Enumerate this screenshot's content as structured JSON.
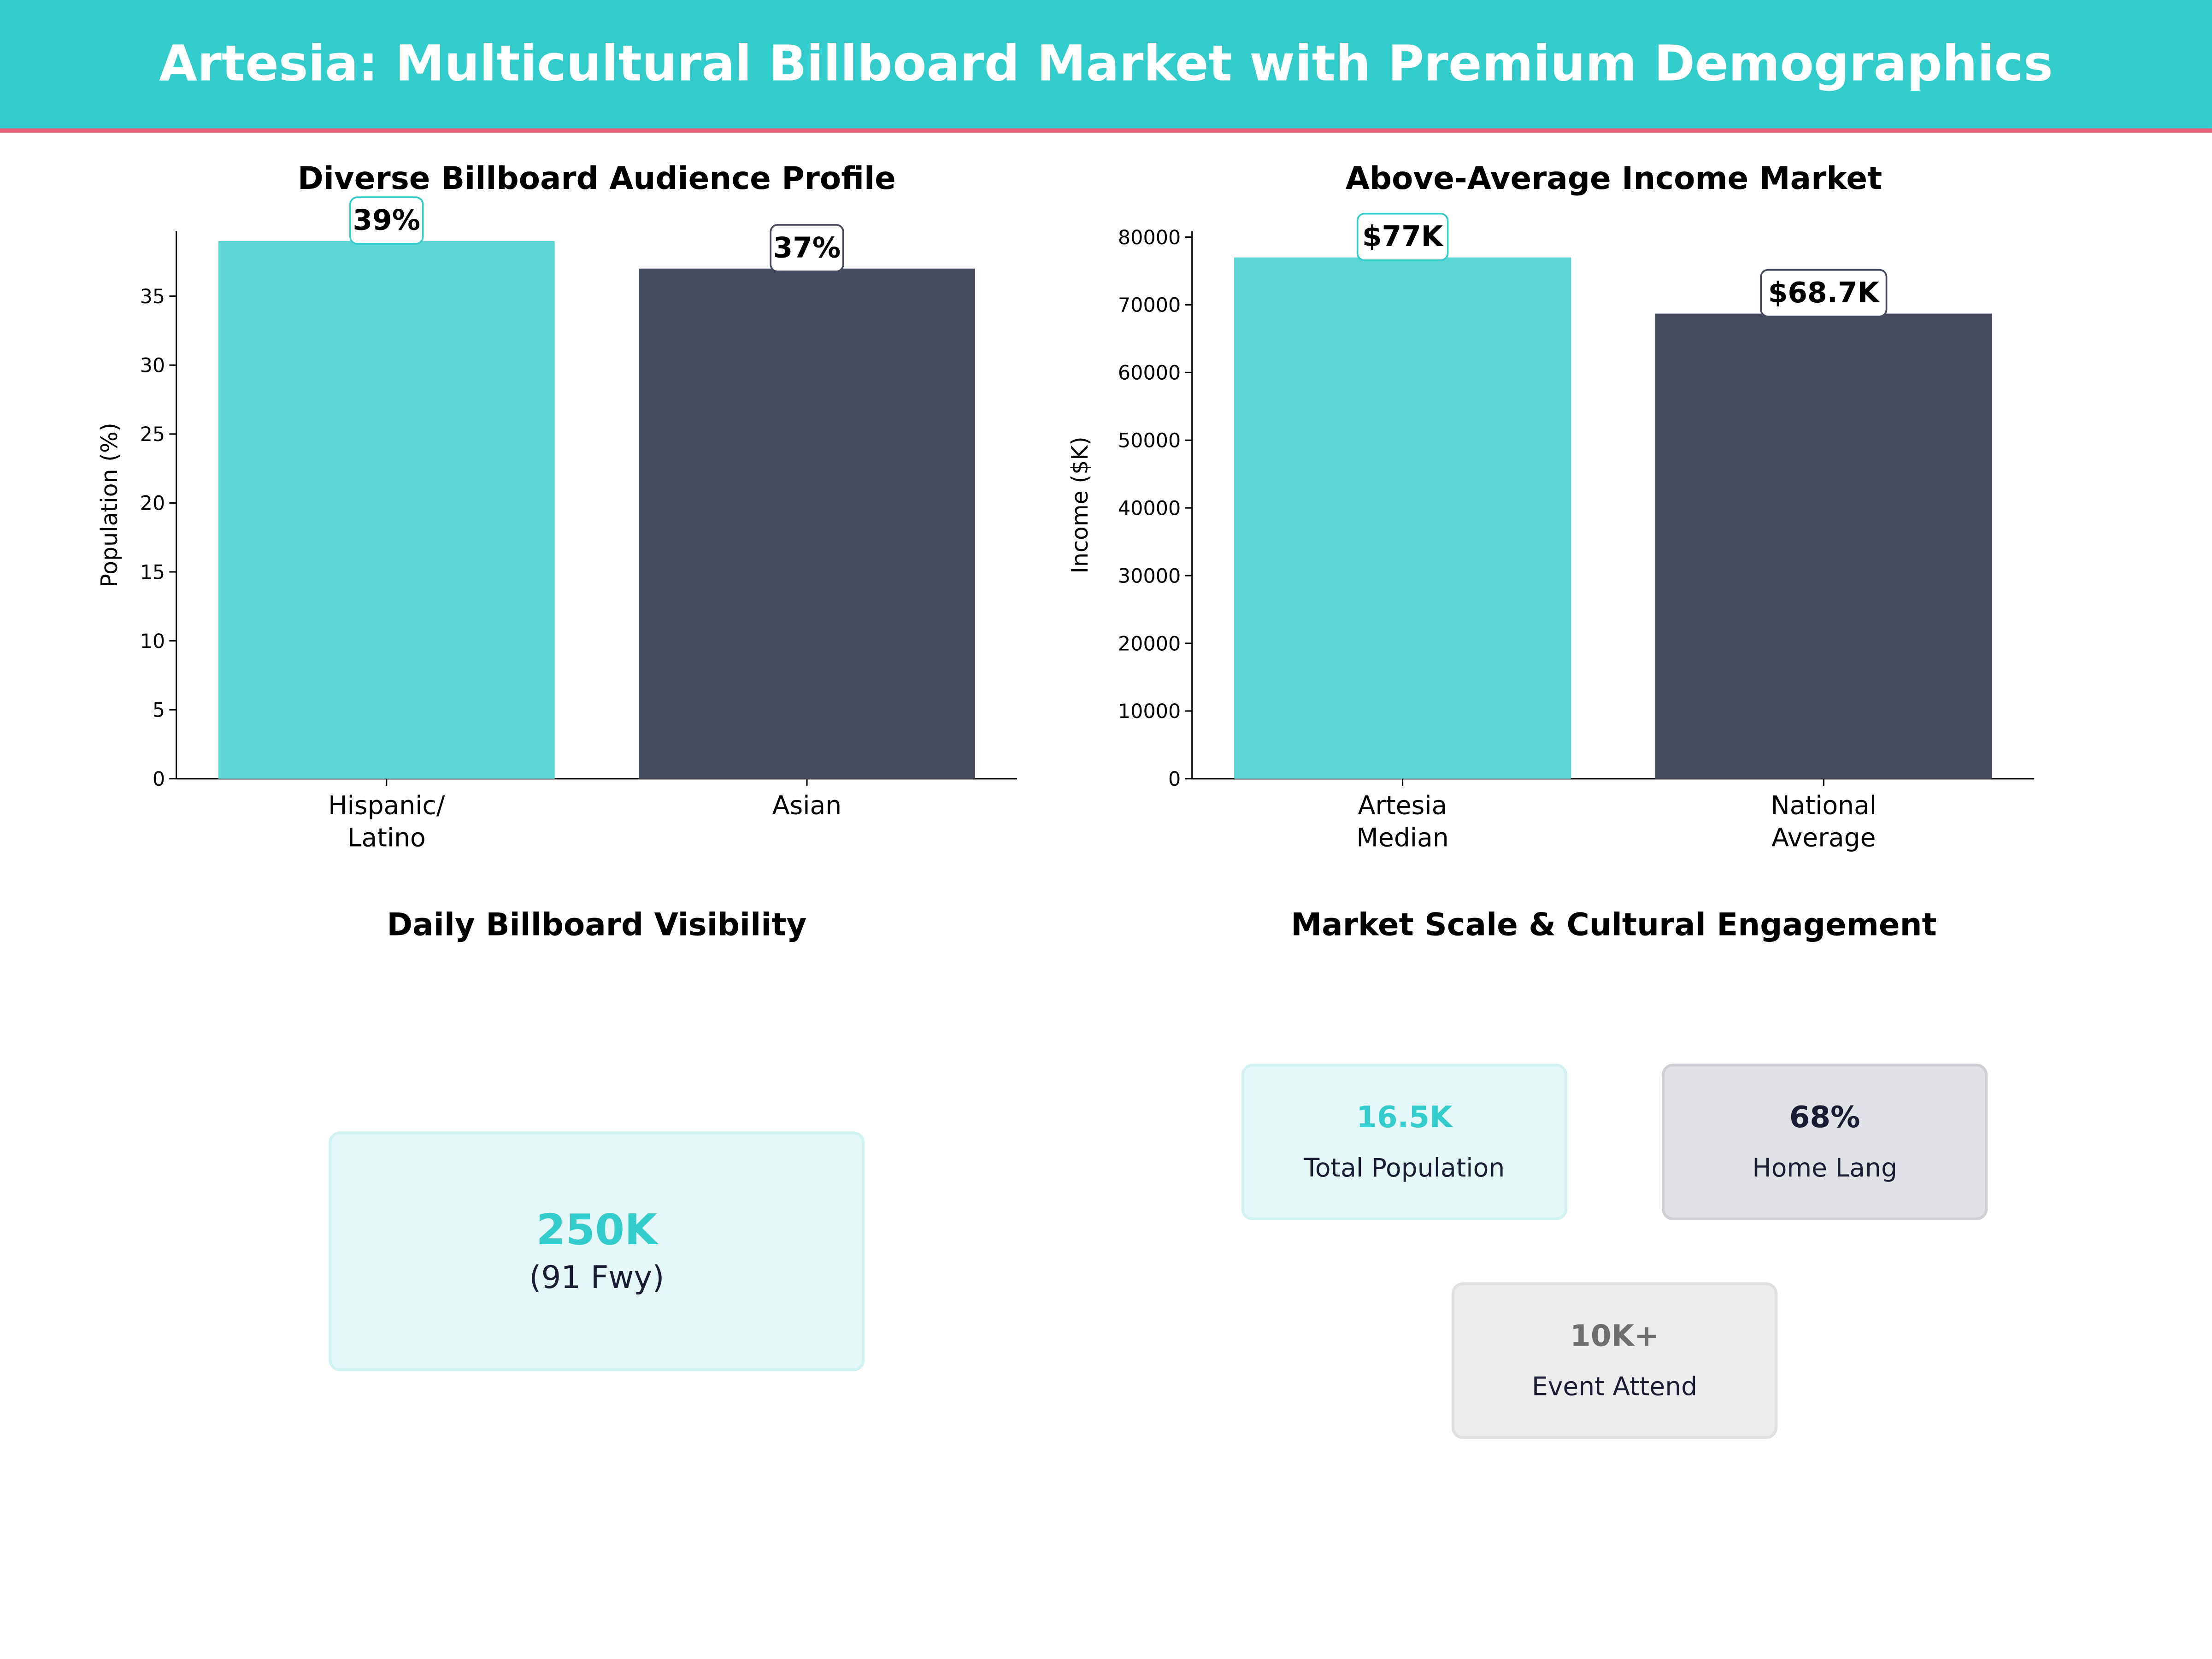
{
  "header": {
    "title": "Artesia: Multicultural Billboard Market with Premium Demographics"
  },
  "colors": {
    "accent": "#33cccc",
    "bar_primary": "#5cd6d3",
    "bar_secondary": "#464a5f",
    "header_border": "#e8637a",
    "dark_text": "#1a1c33"
  },
  "chart_data": [
    {
      "type": "bar",
      "title": "Diverse Billboard Audience Profile",
      "categories": [
        "Hispanic/\nLatino",
        "Asian"
      ],
      "values": [
        39,
        37
      ],
      "data_labels": [
        "39%",
        "37%"
      ],
      "xlabel": "",
      "ylabel": "Population (%)",
      "ylim": [
        0,
        39.7
      ],
      "yticks": [
        0,
        5,
        10,
        15,
        20,
        25,
        30,
        35
      ],
      "grid": false
    },
    {
      "type": "bar",
      "title": "Above-Average Income Market",
      "categories": [
        "Artesia\nMedian",
        "National\nAverage"
      ],
      "values": [
        77000,
        68700
      ],
      "data_labels": [
        "$77K",
        "$68.7K"
      ],
      "xlabel": "",
      "ylabel": "Income ($K)",
      "ylim": [
        0,
        80850
      ],
      "yticks": [
        0,
        10000,
        20000,
        30000,
        40000,
        50000,
        60000,
        70000,
        80000
      ],
      "grid": false
    }
  ],
  "visibility": {
    "title": "Daily Billboard Visibility",
    "value": "250K",
    "sub": "(91 Fwy)"
  },
  "engagement": {
    "title": "Market Scale & Cultural Engagement",
    "cards": [
      {
        "value": "16.5K",
        "label": "Total Population"
      },
      {
        "value": "68%",
        "label": "Home Lang"
      },
      {
        "value": "10K+",
        "label": "Event Attend"
      }
    ]
  }
}
